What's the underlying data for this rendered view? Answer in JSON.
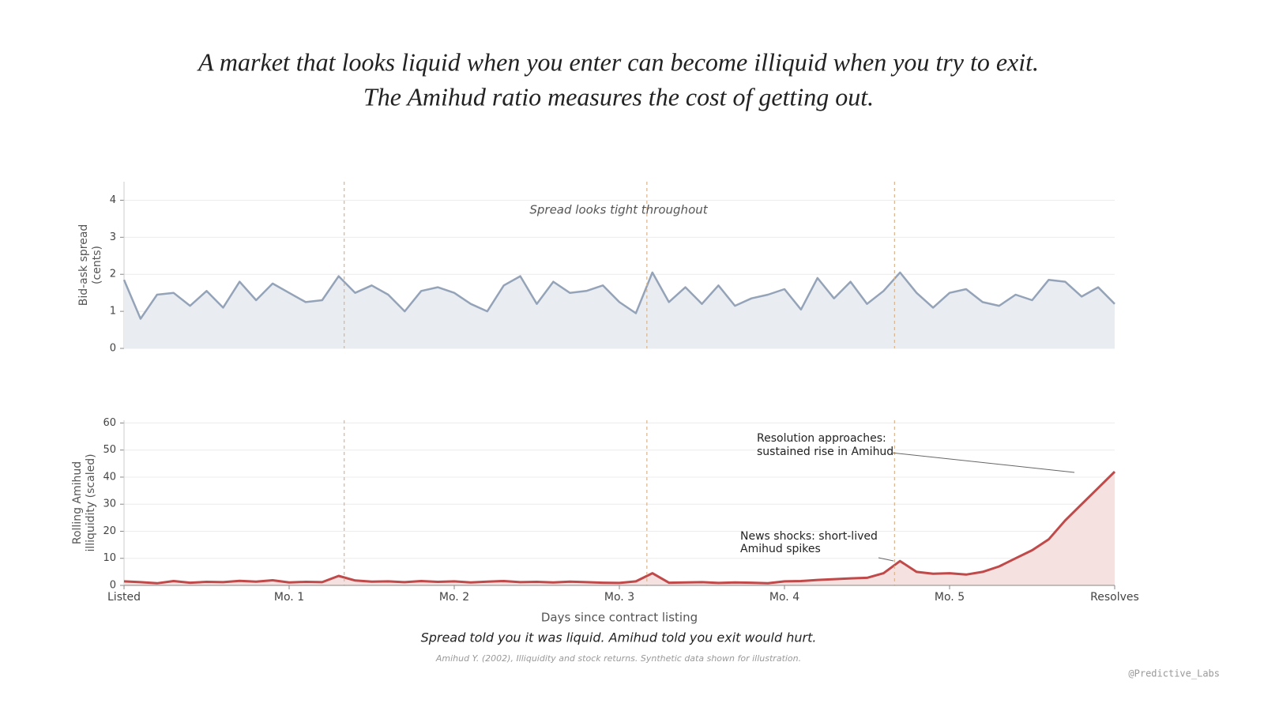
{
  "title": [
    "A market that looks liquid when you enter can become illiquid when you try to exit.",
    "The Amihud ratio measures the cost of getting out."
  ],
  "chart_data": [
    {
      "type": "area",
      "ylabel": [
        "Bid-ask spread",
        "(cents)"
      ],
      "annotations": [
        "Spread looks tight throughout"
      ],
      "x": [
        0,
        3,
        6,
        9,
        12,
        15,
        18,
        21,
        24,
        27,
        30,
        33,
        36,
        39,
        42,
        45,
        48,
        51,
        54,
        57,
        60,
        63,
        66,
        69,
        72,
        75,
        78,
        81,
        84,
        87,
        90,
        93,
        96,
        99,
        102,
        105,
        108,
        111,
        114,
        117,
        120,
        123,
        126,
        129,
        132,
        135,
        138,
        141,
        144,
        147,
        150,
        153,
        156,
        159,
        162,
        165,
        168,
        171,
        174,
        177,
        180
      ],
      "series": [
        {
          "name": "Bid-ask spread",
          "color": "#94a3b8",
          "fill": "#e9edf2",
          "values": [
            1.85,
            0.8,
            1.45,
            1.5,
            1.15,
            1.55,
            1.1,
            1.8,
            1.3,
            1.75,
            1.5,
            1.25,
            1.3,
            1.95,
            1.5,
            1.7,
            1.45,
            1.0,
            1.55,
            1.65,
            1.5,
            1.2,
            1.0,
            1.7,
            1.95,
            1.2,
            1.8,
            1.5,
            1.55,
            1.7,
            1.25,
            0.95,
            2.05,
            1.25,
            1.65,
            1.2,
            1.7,
            1.15,
            1.35,
            1.45,
            1.6,
            1.05,
            1.9,
            1.35,
            1.8,
            1.2,
            1.55,
            2.05,
            1.5,
            1.1,
            1.5,
            1.6,
            1.25,
            1.15,
            1.45,
            1.3,
            1.85,
            1.8,
            1.4,
            1.65,
            1.2
          ]
        }
      ],
      "events": [
        40,
        95,
        140
      ],
      "event_color": "#d9b48c",
      "xlim": [
        0,
        180
      ],
      "ylim": [
        0,
        4.5
      ],
      "yticks": [
        0,
        1,
        2,
        3,
        4
      ],
      "grid": true
    },
    {
      "type": "area",
      "ylabel": [
        "Rolling Amihud",
        "illiquidity (scaled)"
      ],
      "xlabel": "Days since contract listing",
      "annotations": [
        [
          "Resolution approaches:",
          "sustained rise in Amihud"
        ],
        [
          "News shocks: short-lived",
          "Amihud spikes"
        ]
      ],
      "x": [
        0,
        3,
        6,
        9,
        12,
        15,
        18,
        21,
        24,
        27,
        30,
        33,
        36,
        39,
        42,
        45,
        48,
        51,
        54,
        57,
        60,
        63,
        66,
        69,
        72,
        75,
        78,
        81,
        84,
        87,
        90,
        93,
        96,
        99,
        102,
        105,
        108,
        111,
        114,
        117,
        120,
        123,
        126,
        129,
        132,
        135,
        138,
        141,
        144,
        147,
        150,
        153,
        156,
        159,
        162,
        165,
        168,
        171,
        174,
        177,
        180
      ],
      "series": [
        {
          "name": "Rolling Amihud illiquidity",
          "color": "#c0494a",
          "fill": "#f5e1e0",
          "values": [
            1.5,
            1.2,
            0.8,
            1.6,
            1.0,
            1.3,
            1.2,
            1.7,
            1.4,
            1.9,
            1.1,
            1.3,
            1.2,
            3.5,
            1.8,
            1.4,
            1.5,
            1.2,
            1.6,
            1.3,
            1.5,
            1.1,
            1.4,
            1.6,
            1.2,
            1.3,
            1.1,
            1.4,
            1.2,
            1.0,
            0.9,
            1.5,
            4.5,
            1.0,
            1.1,
            1.2,
            0.9,
            1.1,
            1.0,
            0.8,
            1.5,
            1.6,
            2.0,
            2.3,
            2.6,
            2.8,
            4.5,
            9.0,
            5.0,
            4.3,
            4.5,
            4.0,
            5.0,
            7.0,
            10.0,
            13.0,
            17.0,
            24.0,
            30.0,
            36.0,
            42.0
          ]
        }
      ],
      "events": [
        40,
        95,
        140
      ],
      "event_color": "#d9b48c",
      "xlim": [
        0,
        180
      ],
      "ylim": [
        0,
        61
      ],
      "yticks": [
        0,
        10,
        20,
        30,
        40,
        50,
        60
      ],
      "xticks": [
        {
          "value": 0,
          "label": "Listed"
        },
        {
          "value": 30,
          "label": "Mo. 1"
        },
        {
          "value": 60,
          "label": "Mo. 2"
        },
        {
          "value": 90,
          "label": "Mo. 3"
        },
        {
          "value": 120,
          "label": "Mo. 4"
        },
        {
          "value": 150,
          "label": "Mo. 5"
        },
        {
          "value": 180,
          "label": "Resolves"
        }
      ],
      "grid": true
    }
  ],
  "caption": "Spread told you it was liquid. Amihud told you exit would hurt.",
  "source": "Amihud Y. (2002), Illiquidity and stock returns. Synthetic data shown for illustration.",
  "watermark": "@Predictive_Labs"
}
